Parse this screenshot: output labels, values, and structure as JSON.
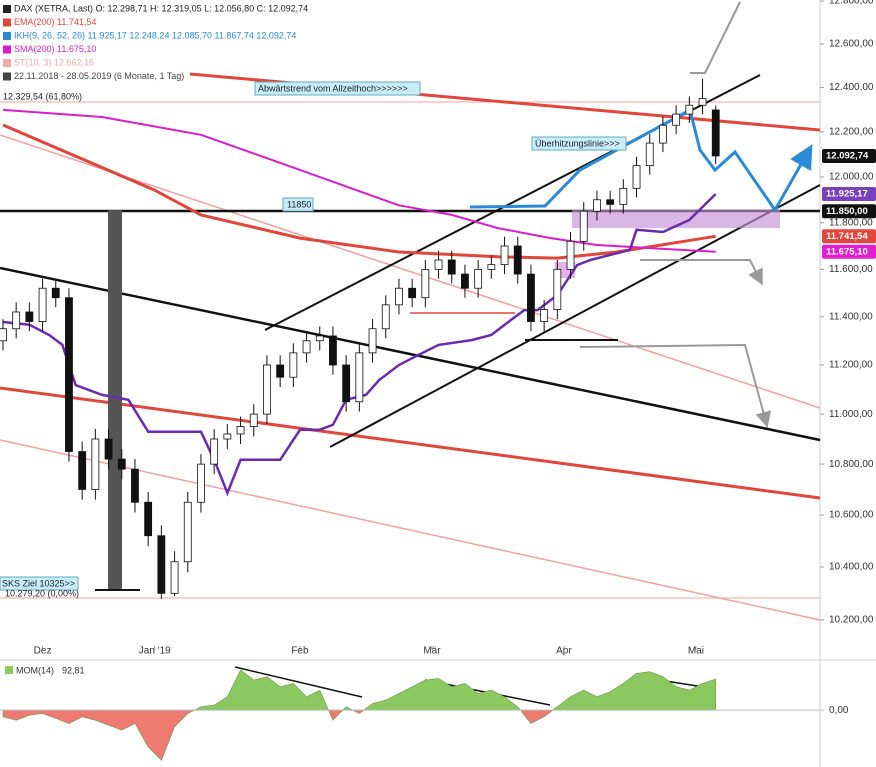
{
  "chart_data": {
    "type": "candlestick",
    "legend": [
      {
        "text": "DAX (XETRA, Last)  O: 12.298,71  H: 12.319,05  L: 12.056,80  C: 12.092,74",
        "color": "#222222"
      },
      {
        "text": "EMA(200)  11.741,54",
        "color": "#e0463c"
      },
      {
        "text": "IKH(9, 26, 52, 26)  11.925,17  12.248,24  12.085,70  11.867,74  12.092,74",
        "color": "#2a8ad8"
      },
      {
        "text": "SMA(200)  11.675,10",
        "color": "#d81ec8"
      },
      {
        "text": "ST(10, 3)  12.662,16",
        "color": "#f2a9a9"
      },
      {
        "text": "22.11.2018 - 28.05.2019 (6 Monate, 1 Tag)",
        "color": "#444444"
      }
    ],
    "log_scale": true,
    "xlim": [
      -0.45,
      123.8
    ],
    "ylim": [
      10088,
      12805
    ],
    "yticks": [
      {
        "value": 10200,
        "label": "10.200,00"
      },
      {
        "value": 10400,
        "label": "10.400,00"
      },
      {
        "value": 10600,
        "label": "10.600,00"
      },
      {
        "value": 10800,
        "label": "10.800,00"
      },
      {
        "value": 11000,
        "label": "11.000,00"
      },
      {
        "value": 11200,
        "label": "11.200,00"
      },
      {
        "value": 11400,
        "label": "11.400,00"
      },
      {
        "value": 11600,
        "label": "11.600,00"
      },
      {
        "value": 11800,
        "label": "11.800,00"
      },
      {
        "value": 12000,
        "label": "12.000,00"
      },
      {
        "value": 12200,
        "label": "12.200,00"
      },
      {
        "value": 12400,
        "label": "12.400,00"
      },
      {
        "value": 12600,
        "label": "12.600,00"
      },
      {
        "value": 12800,
        "label": "12.800,00"
      }
    ],
    "xticks": [
      {
        "value": 6,
        "label": "Dez"
      },
      {
        "value": 23,
        "label": "Jan '19"
      },
      {
        "value": 45,
        "label": "Feb"
      },
      {
        "value": 65,
        "label": "Mär"
      },
      {
        "value": 85,
        "label": "Apr"
      },
      {
        "value": 105,
        "label": "Mai"
      }
    ],
    "x": [
      0,
      2,
      4,
      6,
      8,
      10,
      12,
      14,
      16,
      18,
      20,
      22,
      24,
      26,
      28,
      30,
      32,
      34,
      36,
      38,
      40,
      42,
      44,
      46,
      48,
      50,
      52,
      54,
      56,
      58,
      60,
      62,
      64,
      66,
      68,
      70,
      72,
      74,
      76,
      78,
      80,
      82,
      84,
      86,
      88,
      90,
      92,
      94,
      96,
      98,
      100,
      102,
      104,
      106,
      108
    ],
    "open": [
      11300,
      11350,
      11420,
      11380,
      11520,
      11480,
      10850,
      10700,
      10900,
      10820,
      10780,
      10650,
      10520,
      10300,
      10420,
      10650,
      10800,
      10900,
      10920,
      10950,
      11000,
      11200,
      11150,
      11250,
      11300,
      11320,
      11200,
      11050,
      11250,
      11350,
      11450,
      11520,
      11480,
      11600,
      11640,
      11580,
      11520,
      11600,
      11620,
      11700,
      11580,
      11380,
      11430,
      11600,
      11720,
      11850,
      11900,
      11880,
      11950,
      12050,
      12150,
      12230,
      12280,
      12320,
      12298.71
    ],
    "high": [
      11390,
      11460,
      11460,
      11560,
      11560,
      11520,
      10890,
      10940,
      10940,
      10860,
      10820,
      10690,
      10560,
      10460,
      10690,
      10840,
      10940,
      10960,
      10990,
      11040,
      11240,
      11240,
      11290,
      11340,
      11360,
      11360,
      11240,
      11290,
      11390,
      11490,
      11560,
      11560,
      11640,
      11680,
      11680,
      11620,
      11640,
      11660,
      11740,
      11740,
      11620,
      11470,
      11640,
      11760,
      11890,
      11940,
      11940,
      11990,
      12090,
      12190,
      12270,
      12320,
      12360,
      12440,
      12319.05
    ],
    "low": [
      11260,
      11310,
      11340,
      11340,
      11440,
      10810,
      10660,
      10660,
      10780,
      10740,
      10610,
      10480,
      10279.2,
      10290,
      10380,
      10610,
      10760,
      10860,
      10880,
      10910,
      10960,
      11110,
      11110,
      11210,
      11260,
      11160,
      11010,
      11010,
      11210,
      11310,
      11410,
      11440,
      11440,
      11560,
      11540,
      11480,
      11480,
      11560,
      11580,
      11540,
      11340,
      11340,
      11390,
      11560,
      11680,
      11810,
      11840,
      11840,
      11910,
      12010,
      12110,
      12190,
      12240,
      12280,
      12056.8
    ],
    "close": [
      11350,
      11420,
      11380,
      11520,
      11480,
      10850,
      10700,
      10900,
      10820,
      10780,
      10650,
      10520,
      10300,
      10420,
      10650,
      10800,
      10900,
      10920,
      10950,
      11000,
      11200,
      11150,
      11250,
      11300,
      11320,
      11200,
      11050,
      11250,
      11350,
      11450,
      11520,
      11480,
      11600,
      11640,
      11580,
      11520,
      11600,
      11620,
      11700,
      11580,
      11380,
      11430,
      11600,
      11720,
      11850,
      11900,
      11880,
      11950,
      12050,
      12150,
      12230,
      12280,
      12320,
      12350,
      12092.74
    ],
    "overlays": [
      {
        "color": "#e0463c",
        "width": 3,
        "x": [
          0,
          23,
          30,
          45,
          60,
          75,
          84,
          93,
          108
        ],
        "values": [
          12231,
          11942,
          11834,
          11734,
          11674,
          11654,
          11648,
          11674,
          11741.54
        ]
      },
      {
        "color": "#d81ec8",
        "width": 2,
        "x": [
          0,
          15,
          30,
          45,
          60,
          68,
          75,
          83,
          90,
          98,
          108
        ],
        "values": [
          12299,
          12267,
          12187,
          12031,
          11876,
          11834,
          11777,
          11734,
          11704,
          11691,
          11675.1
        ]
      },
      {
        "color": "#6a2bb0",
        "width": 2.5,
        "x": [
          0,
          4,
          7,
          9,
          11,
          15,
          19,
          22,
          30,
          32,
          34,
          36,
          42,
          45,
          48,
          50,
          52,
          55,
          57,
          60,
          63,
          66,
          71,
          74,
          77,
          79,
          81,
          84,
          87,
          89,
          95,
          96,
          100,
          104,
          108
        ],
        "values": [
          11378,
          11367,
          11324,
          11283,
          11118,
          11078,
          11058,
          10929,
          10929,
          10817,
          10686,
          10817,
          10817,
          10937,
          10937,
          10957,
          11058,
          11078,
          11138,
          11200,
          11242,
          11283,
          11303,
          11324,
          11387,
          11428,
          11428,
          11491,
          11618,
          11640,
          11683,
          11770,
          11760,
          11812,
          11925.17
        ]
      }
    ],
    "price_tags": [
      {
        "value": 12092.74,
        "label": "12.092,74",
        "color": "#111111"
      },
      {
        "value": 11925.17,
        "label": "11.925,17",
        "color": "#7b3fb8"
      },
      {
        "value": 11850,
        "label": "11.850,00",
        "color": "#111111"
      },
      {
        "value": 11741.54,
        "label": "11.741,54",
        "color": "#e0463c"
      },
      {
        "value": 11675.1,
        "label": "11.675,10",
        "color": "#e020d0"
      }
    ],
    "annotations": [
      "Abwärtstrend vom Allzeithoch>>>>>>",
      "Überhitzungslinie>>>",
      "11850",
      "SKS Ziel 10325>>",
      "10.279,20 (0,00%)",
      "12.329,54 (61,80%)"
    ],
    "momentum": {
      "label": "MOM(14)",
      "value_label": "92,81",
      "ylim": [
        -170,
        150
      ],
      "yticks": [
        {
          "value": 0,
          "label": "0,00"
        }
      ],
      "color_up": "#8cc860",
      "color_down": "#ee7a72",
      "values": [
        -20,
        -30,
        -15,
        -10,
        -25,
        -40,
        -20,
        -30,
        -45,
        -60,
        -40,
        -110,
        -150,
        -50,
        -10,
        10,
        15,
        40,
        120,
        90,
        100,
        70,
        80,
        40,
        60,
        -30,
        10,
        -10,
        20,
        30,
        50,
        70,
        90,
        95,
        70,
        80,
        50,
        60,
        40,
        10,
        -40,
        -20,
        10,
        40,
        60,
        40,
        55,
        80,
        110,
        115,
        100,
        70,
        60,
        80,
        92.81
      ]
    }
  }
}
